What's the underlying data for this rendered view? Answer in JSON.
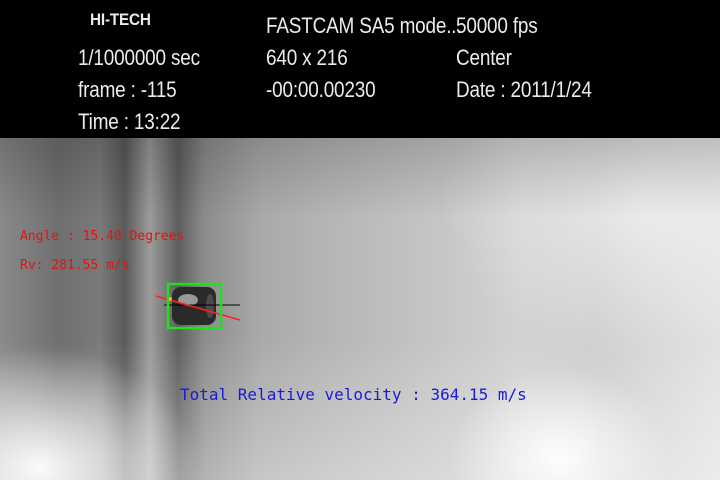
{
  "header": {
    "brand": "HI-TECH",
    "camera_model": "FASTCAM SA5 mode...",
    "frame_rate": "50000 fps",
    "shutter": "1/1000000 sec",
    "resolution": "640 x 216",
    "position": "Center",
    "frame": "frame : -115",
    "timecode": "-00:00.00230",
    "date": "Date : 2011/1/24",
    "time": "Time : 13:22"
  },
  "overlay": {
    "angle": "Angle : 15.40 Degrees",
    "relative_velocity": "Rv: 281.55 m/s",
    "total_relative_velocity": "Total Relative velocity : 364.15 m/s"
  },
  "colors": {
    "angle_text": "#e01414",
    "total_text": "#1a1ad6",
    "tracking_box": "#22dd22",
    "trajectory_line": "#ff2020",
    "reference_line": "#000000"
  }
}
